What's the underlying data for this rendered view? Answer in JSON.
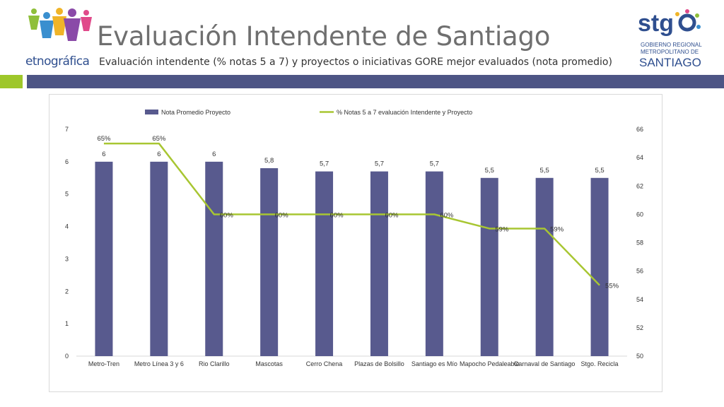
{
  "header": {
    "title": "Evaluación Intendente de Santiago",
    "brand": "etnográfica",
    "subtitle": "Evaluación intendente (% notas 5 a 7) y proyectos o iniciativas GORE mejor evaluados (nota promedio)",
    "logo_right": {
      "word": "stg",
      "line1": "GOBIERNO REGIONAL",
      "line2": "METROPOLITANO DE",
      "line3": "SANTIAGO"
    }
  },
  "colors": {
    "bar": "#585a8e",
    "line": "#a8c632",
    "accent_green": "#9ec72a",
    "accent_blue": "#4d5585"
  },
  "chart_data": {
    "type": "bar",
    "categories": [
      "Metro-Tren",
      "Metro Línea 3 y 6",
      "Rio Clarillo",
      "Mascotas",
      "Cerro Chena",
      "Plazas de Bolsillo",
      "Santiago es Mío",
      "Mapocho Pedaleable",
      "Carnaval de Santiago",
      "Stgo. Recicla"
    ],
    "series": [
      {
        "name": "Nota Promedio Proyecto",
        "type": "bar",
        "axis": "left",
        "values": [
          6,
          6,
          6,
          5.8,
          5.7,
          5.7,
          5.7,
          5.5,
          5.5,
          5.5
        ],
        "labels": [
          "6",
          "6",
          "6",
          "5,8",
          "5,7",
          "5,7",
          "5,7",
          "5,5",
          "5,5",
          "5,5"
        ]
      },
      {
        "name": "% Notas 5 a 7 evaluación Intendente y Proyecto",
        "type": "line",
        "axis": "right",
        "values": [
          65,
          65,
          60,
          60,
          60,
          60,
          60,
          59,
          59,
          55
        ],
        "labels": [
          "65%",
          "65%",
          "60%",
          "60%",
          "60%",
          "60%",
          "60%",
          "59%",
          "59%",
          "55%"
        ]
      }
    ],
    "y_left": {
      "min": 0,
      "max": 7,
      "ticks": [
        "0",
        "1",
        "2",
        "3",
        "4",
        "5",
        "6",
        "7"
      ]
    },
    "y_right": {
      "min": 50,
      "max": 66,
      "ticks": [
        "50",
        "52",
        "54",
        "56",
        "58",
        "60",
        "62",
        "64",
        "66"
      ]
    },
    "legend_position": "top",
    "grid": false
  }
}
